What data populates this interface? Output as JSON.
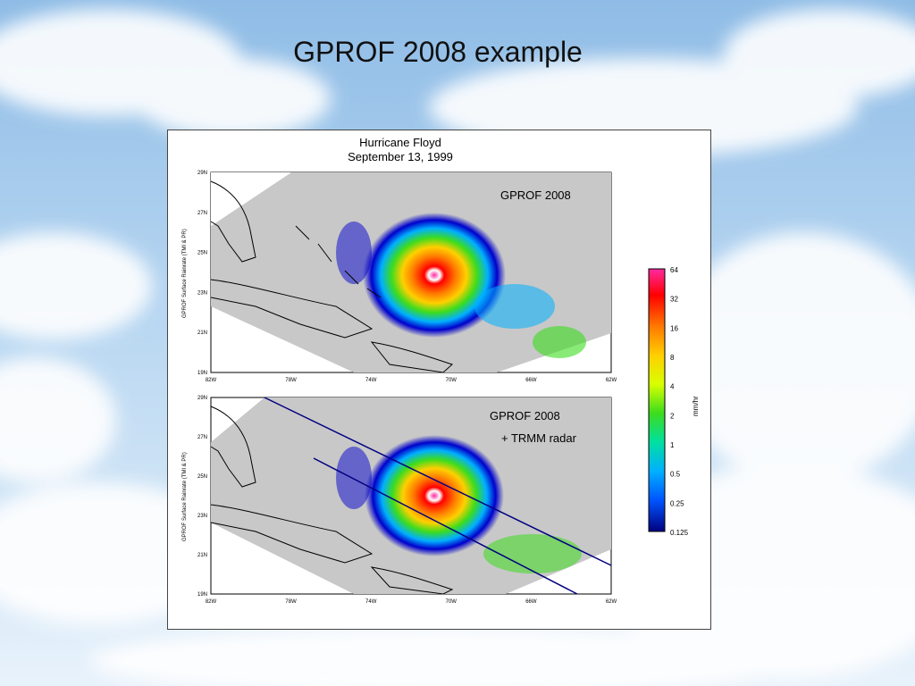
{
  "slide": {
    "title": "GPROF 2008 example"
  },
  "figure": {
    "title_line1": "Hurricane Floyd",
    "title_line2": "September 13, 1999",
    "panels": [
      {
        "label": "GPROF 2008",
        "label2": "",
        "ylabel": "GPROF Surface Rainrate (TMI & PR)"
      },
      {
        "label": "GPROF 2008",
        "label2": "+ TRMM radar",
        "ylabel": "GPROF Surface Rainrate (TMI & PR)"
      }
    ],
    "y_ticks": [
      "29N",
      "27N",
      "25N",
      "23N",
      "21N",
      "19N"
    ],
    "x_ticks": [
      "82W",
      "78W",
      "74W",
      "70W",
      "66W",
      "62W"
    ],
    "colorbar": {
      "unit": "mm/hr",
      "ticks": [
        "64",
        "32",
        "16",
        "8",
        "4",
        "2",
        "1",
        "0.5",
        "0.25",
        "0.125"
      ],
      "colors": [
        "#ff2aa0",
        "#ff0000",
        "#ff7a00",
        "#ffd000",
        "#d7ff00",
        "#3cdc1e",
        "#00e0a0",
        "#00b0ff",
        "#0055ff",
        "#0000cc",
        "#000080"
      ]
    }
  }
}
